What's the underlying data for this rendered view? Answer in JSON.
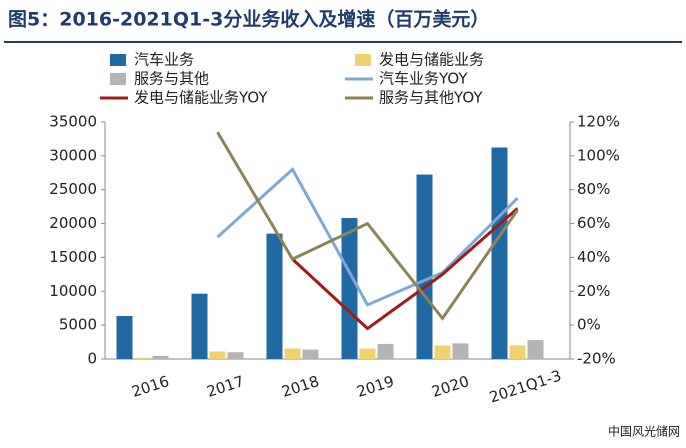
{
  "chart_data": {
    "type": "bar-line",
    "title": "图5：2016-2021Q1-3分业务收入及增速（百万美元）",
    "categories": [
      "2016",
      "2017",
      "2018",
      "2019",
      "2020",
      "2021Q1-3"
    ],
    "series": [
      {
        "name": "汽车业务",
        "type": "bar",
        "color": "#1f6aa5",
        "values": [
          6351,
          9641,
          18515,
          20821,
          27236,
          31233
        ]
      },
      {
        "name": "发电与储能业务",
        "type": "bar",
        "color": "#f0d16e",
        "values": [
          181,
          1116,
          1555,
          1531,
          1994,
          2015
        ]
      },
      {
        "name": "服务与其他",
        "type": "bar",
        "color": "#b4b4b4",
        "values": [
          468,
          1001,
          1391,
          2226,
          2306,
          2794
        ]
      },
      {
        "name": "汽车业务YOY",
        "type": "line",
        "axis": "y2",
        "color": "#7fa7d4",
        "values": [
          null,
          52,
          92,
          12,
          31,
          75
        ]
      },
      {
        "name": "发电与储能业务YOY",
        "type": "line",
        "axis": "y2",
        "color": "#a01c1c",
        "values": [
          null,
          null,
          39,
          -2,
          30,
          69
        ]
      },
      {
        "name": "服务与其他YOY",
        "type": "line",
        "axis": "y2",
        "color": "#8c8457",
        "values": [
          null,
          114,
          39,
          60,
          4,
          68
        ]
      }
    ],
    "ylim": [
      0,
      35000
    ],
    "yticks": [
      0,
      5000,
      10000,
      15000,
      20000,
      25000,
      30000,
      35000
    ],
    "y2lim": [
      -20,
      120
    ],
    "y2ticks": [
      {
        "value": -20,
        "label": "-20%"
      },
      {
        "value": 0,
        "label": "0%"
      },
      {
        "value": 20,
        "label": "20%"
      },
      {
        "value": 40,
        "label": "40%"
      },
      {
        "value": 60,
        "label": "60%"
      },
      {
        "value": 80,
        "label": "80%"
      },
      {
        "value": 100,
        "label": "100%"
      },
      {
        "value": 120,
        "label": "120%"
      }
    ]
  },
  "watermark": "中国风光储网"
}
